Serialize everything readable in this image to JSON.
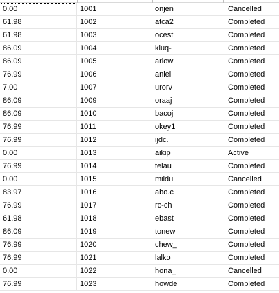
{
  "grid": {
    "rows": [
      {
        "price": "0.00",
        "id": "1001",
        "code": "onjen",
        "status": "Cancelled"
      },
      {
        "price": "61.98",
        "id": "1002",
        "code": "atca2",
        "status": "Completed"
      },
      {
        "price": "61.98",
        "id": "1003",
        "code": "ocest",
        "status": "Completed"
      },
      {
        "price": "86.09",
        "id": "1004",
        "code": "kiuq-",
        "status": "Completed"
      },
      {
        "price": "86.09",
        "id": "1005",
        "code": "ariow",
        "status": "Completed"
      },
      {
        "price": "76.99",
        "id": "1006",
        "code": "aniel",
        "status": "Completed"
      },
      {
        "price": "7.00",
        "id": "1007",
        "code": "urorv",
        "status": "Completed"
      },
      {
        "price": "86.09",
        "id": "1009",
        "code": "oraaj",
        "status": "Completed"
      },
      {
        "price": "86.09",
        "id": "1010",
        "code": "bacoj",
        "status": "Completed"
      },
      {
        "price": "76.99",
        "id": "1011",
        "code": "okey1",
        "status": "Completed"
      },
      {
        "price": "76.99",
        "id": "1012",
        "code": "ijdc.",
        "status": "Completed"
      },
      {
        "price": "0.00",
        "id": "1013",
        "code": "aikip",
        "status": "Active"
      },
      {
        "price": "76.99",
        "id": "1014",
        "code": "telau",
        "status": "Completed"
      },
      {
        "price": "0.00",
        "id": "1015",
        "code": "mildu",
        "status": "Cancelled"
      },
      {
        "price": "83.97",
        "id": "1016",
        "code": "abo.c",
        "status": "Completed"
      },
      {
        "price": "76.99",
        "id": "1017",
        "code": "rc-ch",
        "status": "Completed"
      },
      {
        "price": "61.98",
        "id": "1018",
        "code": "ebast",
        "status": "Completed"
      },
      {
        "price": "86.09",
        "id": "1019",
        "code": "tonew",
        "status": "Completed"
      },
      {
        "price": "76.99",
        "id": "1020",
        "code": "chew_",
        "status": "Completed"
      },
      {
        "price": "76.99",
        "id": "1021",
        "code": "lalko",
        "status": "Completed"
      },
      {
        "price": "0.00",
        "id": "1022",
        "code": "hona_",
        "status": "Cancelled"
      },
      {
        "price": "76.99",
        "id": "1023",
        "code": "howde",
        "status": "Completed"
      }
    ]
  }
}
